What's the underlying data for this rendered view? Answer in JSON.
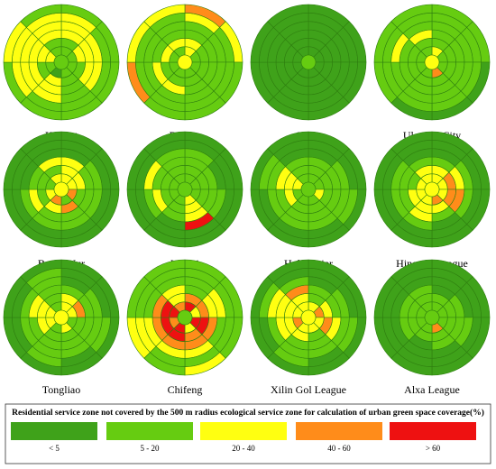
{
  "chart_data": {
    "type": "polar-grid",
    "title": "",
    "legend": {
      "title": "Residential service zone not covered by the 500 m radius ecological service zone for calculation of urban green space coverage(%)",
      "classes": [
        {
          "label": "< 5",
          "color": "#3fa21a"
        },
        {
          "label": "5 - 20",
          "color": "#66cc11"
        },
        {
          "label": "20 - 40",
          "color": "#ffff11"
        },
        {
          "label": "40 - 60",
          "color": "#ff8c1a"
        },
        {
          "label": "> 60",
          "color": "#ee1111"
        }
      ]
    },
    "rings": 6,
    "sectors": 8,
    "cities": [
      {
        "name": "Hohhot",
        "cells": [
          [
            1,
            1,
            1,
            1,
            0,
            1,
            2,
            1
          ],
          [
            1,
            2,
            1,
            1,
            2,
            1,
            2,
            1
          ],
          [
            2,
            2,
            2,
            1,
            2,
            2,
            2,
            2
          ],
          [
            2,
            2,
            2,
            1,
            2,
            2,
            2,
            2
          ],
          [
            2,
            1,
            1,
            1,
            1,
            2,
            2,
            2
          ],
          [
            1,
            1,
            1,
            1,
            1,
            1,
            2,
            1
          ]
        ]
      },
      {
        "name": "Baotou",
        "cells": [
          [
            2,
            1,
            1,
            1,
            1,
            1,
            1,
            1
          ],
          [
            2,
            1,
            1,
            1,
            1,
            1,
            2,
            2
          ],
          [
            1,
            1,
            1,
            1,
            2,
            2,
            1,
            1
          ],
          [
            1,
            1,
            1,
            1,
            1,
            1,
            1,
            1
          ],
          [
            2,
            1,
            1,
            1,
            1,
            1,
            1,
            1
          ],
          [
            3,
            2,
            1,
            1,
            1,
            3,
            2,
            2
          ]
        ]
      },
      {
        "name": "Ordos",
        "cells": [
          [
            0,
            0,
            0,
            0,
            0,
            0,
            0,
            0
          ],
          [
            0,
            0,
            0,
            0,
            0,
            0,
            0,
            0
          ],
          [
            0,
            0,
            0,
            0,
            0,
            0,
            0,
            0
          ],
          [
            0,
            0,
            0,
            0,
            0,
            0,
            0,
            0
          ],
          [
            0,
            0,
            0,
            0,
            0,
            0,
            0,
            0
          ],
          [
            0,
            0,
            0,
            0,
            0,
            0,
            0,
            0
          ]
        ]
      },
      {
        "name": "Ulanqab City",
        "cells": [
          [
            2,
            1,
            1,
            3,
            1,
            1,
            1,
            1
          ],
          [
            1,
            1,
            1,
            1,
            1,
            1,
            1,
            1
          ],
          [
            1,
            1,
            1,
            1,
            1,
            1,
            1,
            2
          ],
          [
            1,
            1,
            1,
            1,
            1,
            1,
            2,
            1
          ],
          [
            1,
            1,
            1,
            1,
            1,
            1,
            1,
            1
          ],
          [
            1,
            1,
            0,
            0,
            0,
            1,
            1,
            1
          ]
        ]
      },
      {
        "name": "Bayan Nur",
        "cells": [
          [
            2,
            2,
            3,
            1,
            3,
            2,
            1,
            2
          ],
          [
            2,
            2,
            1,
            3,
            2,
            1,
            1,
            1
          ],
          [
            2,
            1,
            1,
            1,
            1,
            2,
            1,
            2
          ],
          [
            0,
            1,
            1,
            1,
            1,
            1,
            0,
            0
          ],
          [
            0,
            0,
            0,
            0,
            0,
            0,
            0,
            0
          ],
          [
            0,
            0,
            0,
            0,
            0,
            0,
            0,
            0
          ]
        ]
      },
      {
        "name": "Wuhai",
        "cells": [
          [
            1,
            1,
            1,
            2,
            1,
            1,
            1,
            1
          ],
          [
            1,
            1,
            1,
            2,
            1,
            1,
            1,
            1
          ],
          [
            1,
            1,
            1,
            2,
            1,
            2,
            1,
            1
          ],
          [
            1,
            0,
            1,
            4,
            0,
            1,
            2,
            1
          ],
          [
            0,
            0,
            0,
            0,
            0,
            0,
            0,
            0
          ],
          [
            0,
            0,
            0,
            0,
            0,
            0,
            0,
            0
          ]
        ]
      },
      {
        "name": "Hulunbeier",
        "cells": [
          [
            1,
            1,
            2,
            1,
            1,
            1,
            2,
            1
          ],
          [
            1,
            1,
            1,
            1,
            1,
            2,
            2,
            1
          ],
          [
            1,
            1,
            1,
            1,
            1,
            1,
            2,
            1
          ],
          [
            0,
            1,
            1,
            1,
            1,
            1,
            1,
            0
          ],
          [
            0,
            0,
            1,
            0,
            0,
            0,
            1,
            0
          ],
          [
            0,
            0,
            0,
            0,
            0,
            0,
            0,
            0
          ]
        ]
      },
      {
        "name": "Hinggan League",
        "cells": [
          [
            2,
            2,
            2,
            3,
            2,
            2,
            2,
            2
          ],
          [
            2,
            3,
            3,
            2,
            2,
            2,
            1,
            2
          ],
          [
            1,
            2,
            3,
            1,
            2,
            1,
            1,
            1
          ],
          [
            0,
            1,
            1,
            0,
            1,
            1,
            1,
            0
          ],
          [
            0,
            0,
            0,
            0,
            0,
            0,
            0,
            0
          ],
          [
            0,
            0,
            0,
            0,
            0,
            0,
            0,
            0
          ]
        ]
      },
      {
        "name": "Tongliao",
        "cells": [
          [
            2,
            2,
            1,
            2,
            1,
            2,
            2,
            1
          ],
          [
            2,
            3,
            1,
            1,
            1,
            2,
            2,
            1
          ],
          [
            1,
            1,
            1,
            1,
            1,
            1,
            2,
            1
          ],
          [
            0,
            1,
            1,
            1,
            1,
            1,
            1,
            1
          ],
          [
            0,
            0,
            1,
            0,
            1,
            0,
            0,
            1
          ],
          [
            0,
            0,
            0,
            0,
            0,
            0,
            0,
            0
          ]
        ]
      },
      {
        "name": "Chifeng",
        "cells": [
          [
            4,
            2,
            4,
            2,
            4,
            3,
            4,
            3
          ],
          [
            3,
            3,
            4,
            3,
            4,
            4,
            4,
            2
          ],
          [
            1,
            2,
            3,
            3,
            3,
            3,
            3,
            2
          ],
          [
            1,
            2,
            1,
            2,
            2,
            2,
            1,
            1
          ],
          [
            1,
            1,
            1,
            1,
            1,
            2,
            1,
            1
          ],
          [
            1,
            1,
            1,
            2,
            1,
            2,
            1,
            1
          ]
        ]
      },
      {
        "name": "Xilin Gol League",
        "cells": [
          [
            2,
            3,
            2,
            2,
            2,
            3,
            2,
            2
          ],
          [
            1,
            2,
            3,
            1,
            2,
            2,
            2,
            2
          ],
          [
            1,
            1,
            2,
            1,
            1,
            2,
            2,
            3
          ],
          [
            0,
            1,
            1,
            1,
            1,
            1,
            2,
            1
          ],
          [
            0,
            0,
            1,
            0,
            1,
            0,
            1,
            0
          ],
          [
            0,
            0,
            0,
            0,
            0,
            0,
            0,
            0
          ]
        ]
      },
      {
        "name": "Alxa League",
        "cells": [
          [
            1,
            1,
            1,
            3,
            1,
            1,
            1,
            1
          ],
          [
            1,
            1,
            1,
            1,
            1,
            1,
            1,
            1
          ],
          [
            0,
            1,
            1,
            1,
            0,
            1,
            1,
            1
          ],
          [
            0,
            0,
            1,
            0,
            0,
            0,
            0,
            0
          ],
          [
            0,
            0,
            0,
            0,
            0,
            0,
            0,
            0
          ],
          [
            0,
            0,
            0,
            0,
            0,
            0,
            0,
            0
          ]
        ]
      }
    ]
  }
}
